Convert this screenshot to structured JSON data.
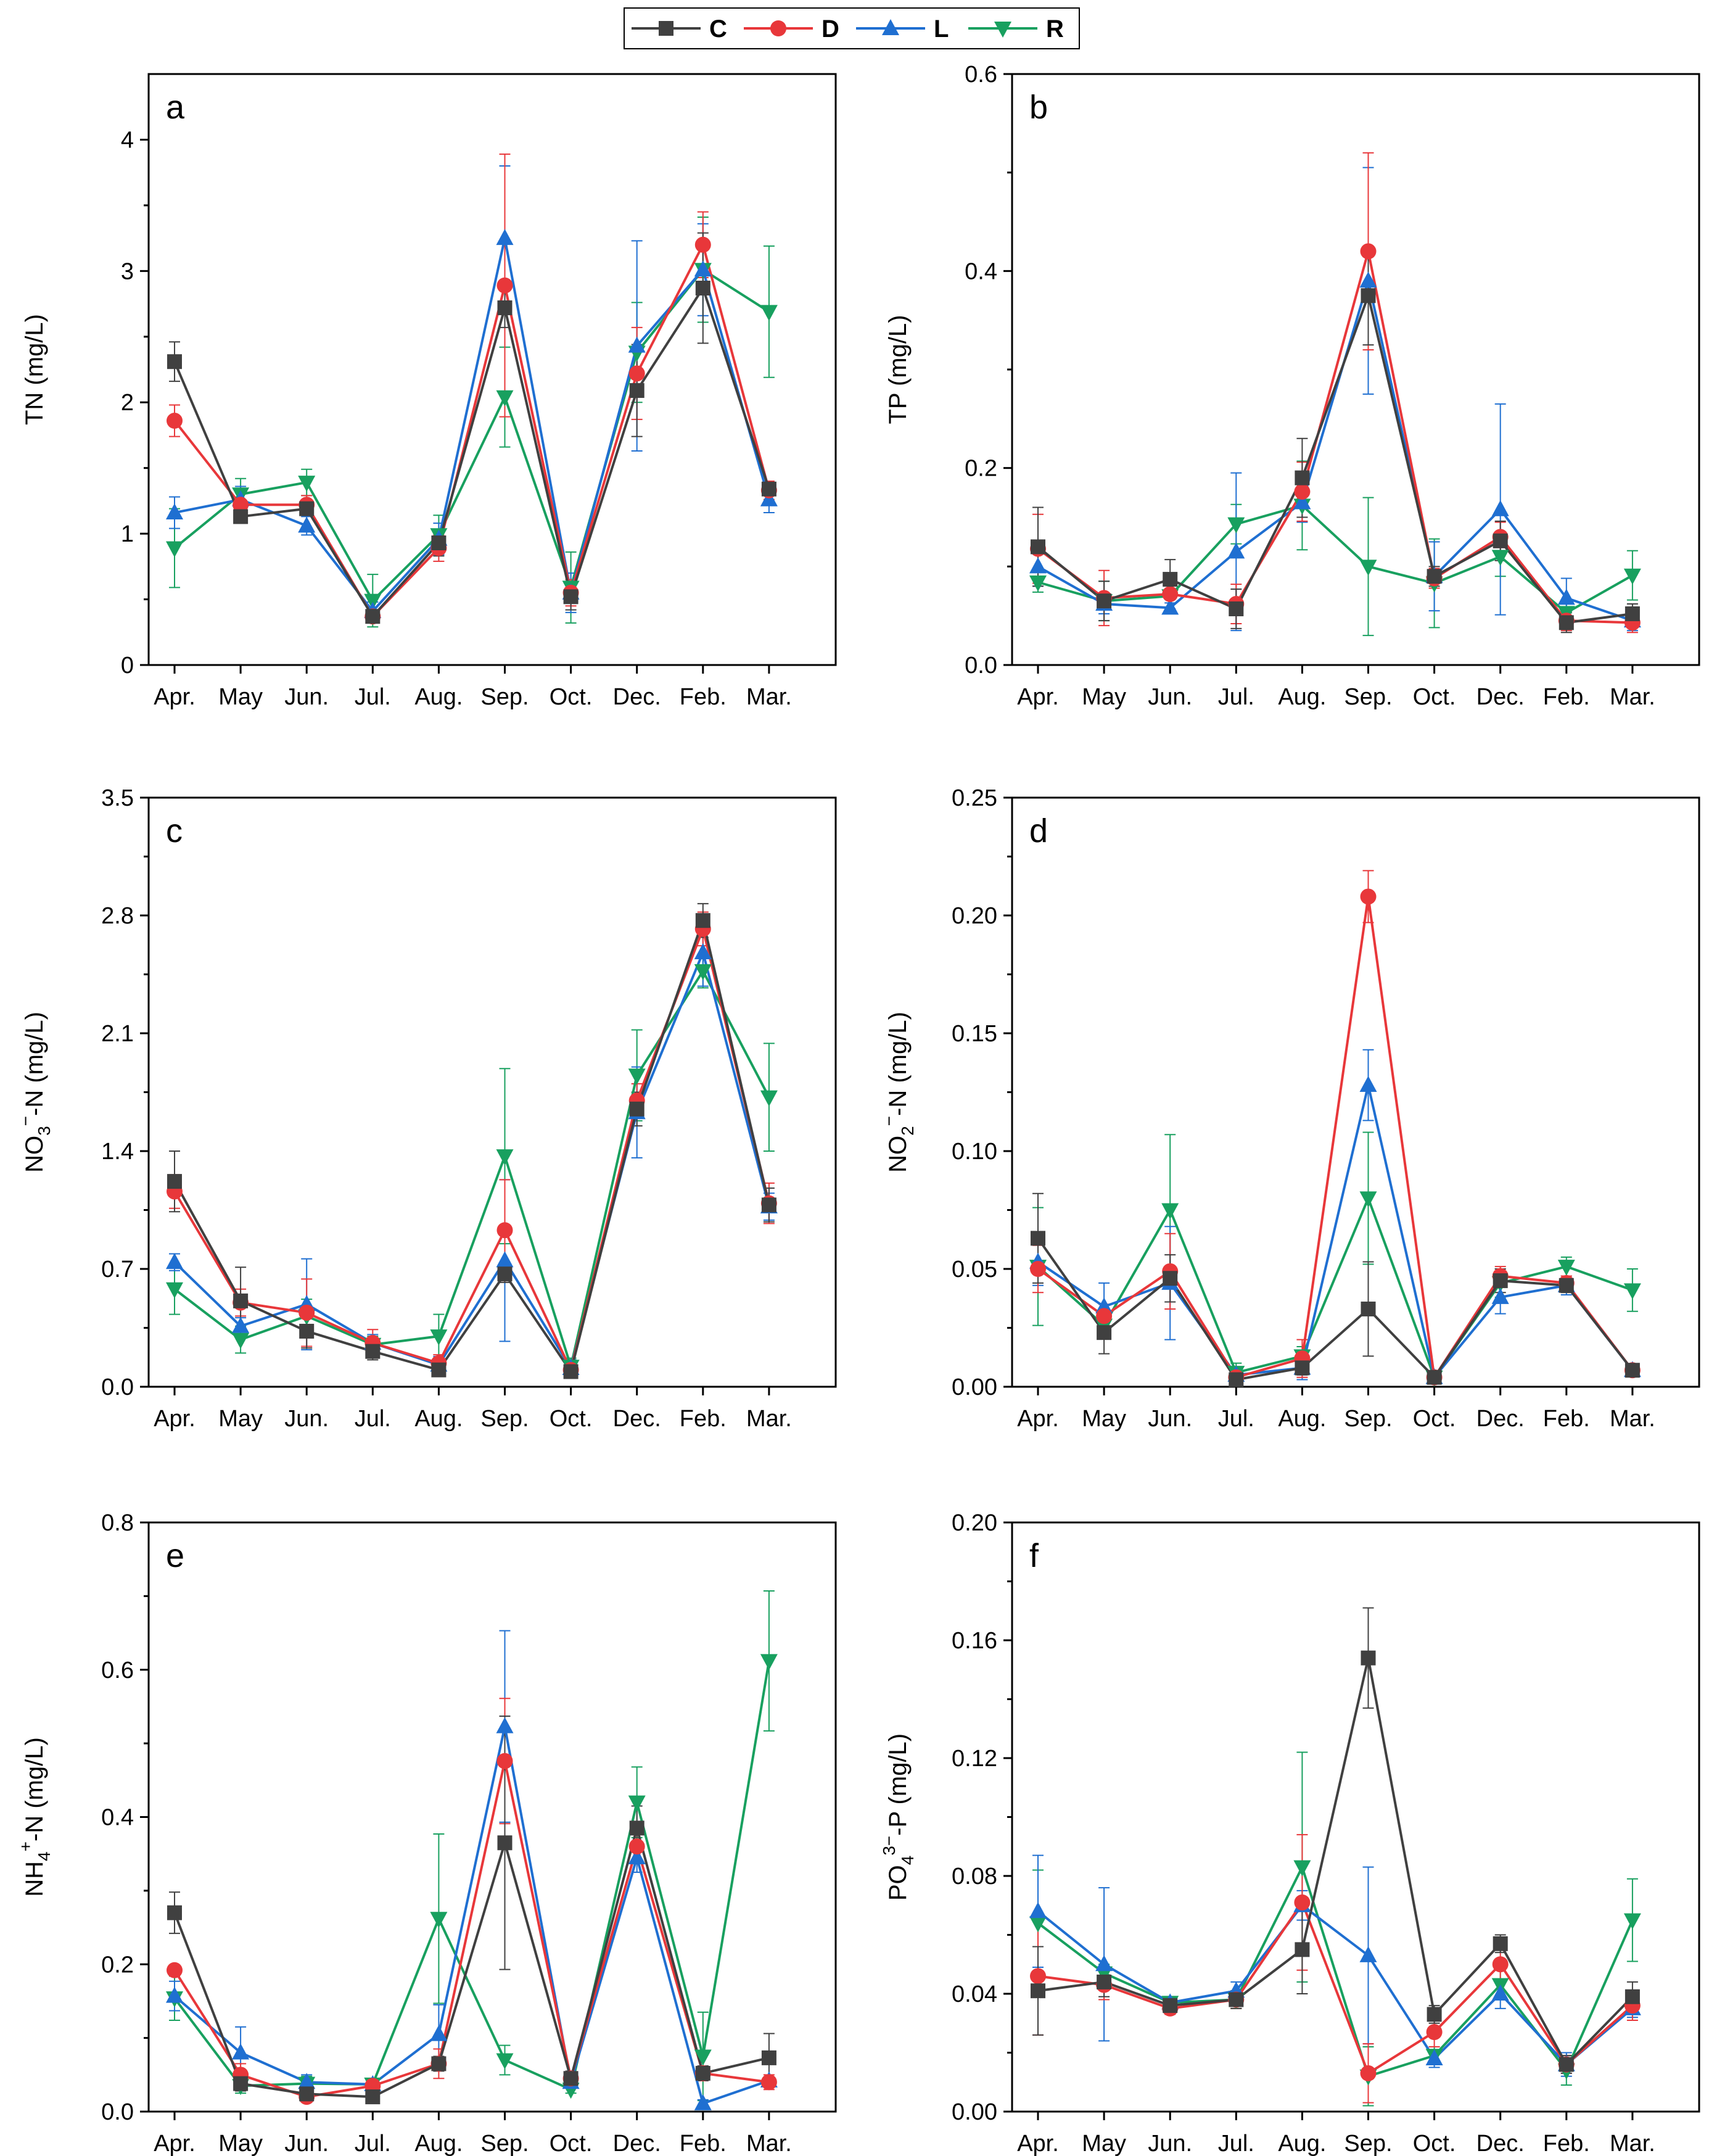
{
  "legend": {
    "items": [
      {
        "name": "C",
        "color": "#404040",
        "marker": "square"
      },
      {
        "name": "D",
        "color": "#e8373a",
        "marker": "circle"
      },
      {
        "name": "L",
        "color": "#1f6fd1",
        "marker": "triangle-up"
      },
      {
        "name": "R",
        "color": "#18a05f",
        "marker": "triangle-down"
      }
    ],
    "placement": "top-center"
  },
  "chart_data": [
    {
      "type": "line",
      "panel": "a",
      "ylabel": "TN (mg/L)",
      "ylim": [
        0,
        4.5
      ],
      "yticks": [
        0,
        1,
        2,
        3,
        4
      ],
      "ytick_labels": [
        "0",
        "1",
        "2",
        "3",
        "4"
      ],
      "categories": [
        "Apr.",
        "May",
        "Jun.",
        "Jul.",
        "Aug.",
        "Sep.",
        "Oct.",
        "Dec.",
        "Feb.",
        "Mar."
      ],
      "series": [
        {
          "name": "C",
          "values": [
            2.31,
            1.13,
            1.19,
            0.37,
            0.93,
            2.72,
            0.52,
            2.09,
            2.87,
            1.34
          ],
          "errors": [
            0.15,
            0.05,
            0.05,
            0.05,
            0.1,
            0.15,
            0.1,
            0.35,
            0.42,
            0.05
          ]
        },
        {
          "name": "D",
          "values": [
            1.86,
            1.22,
            1.22,
            0.37,
            0.89,
            2.89,
            0.55,
            2.22,
            3.2,
            1.33
          ],
          "errors": [
            0.12,
            0.1,
            0.07,
            0.05,
            0.1,
            1.0,
            0.1,
            0.35,
            0.25,
            0.07
          ]
        },
        {
          "name": "L",
          "values": [
            1.16,
            1.26,
            1.06,
            0.41,
            0.96,
            3.25,
            0.55,
            2.43,
            3.01,
            1.26
          ],
          "errors": [
            0.12,
            0.1,
            0.07,
            0.07,
            0.12,
            0.55,
            0.15,
            0.8,
            0.35,
            0.1
          ]
        },
        {
          "name": "R",
          "values": [
            0.89,
            1.3,
            1.39,
            0.49,
            0.99,
            2.04,
            0.59,
            2.38,
            3.01,
            2.69
          ],
          "errors": [
            0.3,
            0.12,
            0.1,
            0.2,
            0.15,
            0.38,
            0.27,
            0.38,
            0.4,
            0.5
          ]
        }
      ]
    },
    {
      "type": "line",
      "panel": "b",
      "ylabel": "TP (mg/L)",
      "ylim": [
        0,
        0.6
      ],
      "yticks": [
        0,
        0.2,
        0.4,
        0.6
      ],
      "ytick_labels": [
        "0.0",
        "0.2",
        "0.4",
        "0.6"
      ],
      "categories": [
        "Apr.",
        "May",
        "Jun.",
        "Jul.",
        "Aug.",
        "Sep.",
        "Oct.",
        "Dec.",
        "Feb.",
        "Mar."
      ],
      "series": [
        {
          "name": "C",
          "values": [
            0.12,
            0.065,
            0.087,
            0.057,
            0.19,
            0.375,
            0.09,
            0.126,
            0.043,
            0.052
          ],
          "errors": [
            0.04,
            0.02,
            0.02,
            0.02,
            0.04,
            0.05,
            0.01,
            0.02,
            0.01,
            0.01
          ]
        },
        {
          "name": "D",
          "values": [
            0.118,
            0.068,
            0.072,
            0.062,
            0.176,
            0.42,
            0.088,
            0.13,
            0.045,
            0.043
          ],
          "errors": [
            0.035,
            0.028,
            0.015,
            0.02,
            0.03,
            0.1,
            0.01,
            0.015,
            0.01,
            0.01
          ]
        },
        {
          "name": "L",
          "values": [
            0.1,
            0.062,
            0.058,
            0.115,
            0.165,
            0.39,
            0.09,
            0.158,
            0.068,
            0.045
          ],
          "errors": [
            0.02,
            0.01,
            0.005,
            0.08,
            0.02,
            0.115,
            0.035,
            0.107,
            0.02,
            0.01
          ]
        },
        {
          "name": "R",
          "values": [
            0.084,
            0.065,
            0.07,
            0.143,
            0.162,
            0.1,
            0.083,
            0.11,
            0.053,
            0.091
          ],
          "errors": [
            0.01,
            0.02,
            0.015,
            0.02,
            0.045,
            0.07,
            0.045,
            0.02,
            0.01,
            0.025
          ]
        }
      ]
    },
    {
      "type": "line",
      "panel": "c",
      "ylabel": "NO3−-N (mg/L)",
      "ylabel_parts": {
        "base": "NO",
        "sub": "3",
        "sup": "−",
        "rest": "-N (mg/L)"
      },
      "ylim": [
        0,
        3.5
      ],
      "yticks": [
        0,
        0.7,
        1.4,
        2.1,
        2.8,
        3.5
      ],
      "ytick_labels": [
        "0.0",
        "0.7",
        "1.4",
        "2.1",
        "2.8",
        "3.5"
      ],
      "categories": [
        "Apr.",
        "May",
        "Jun.",
        "Jul.",
        "Aug.",
        "Sep.",
        "Oct.",
        "Dec.",
        "Feb.",
        "Mar."
      ],
      "series": [
        {
          "name": "C",
          "values": [
            1.22,
            0.51,
            0.33,
            0.21,
            0.1,
            0.67,
            0.09,
            1.65,
            2.77,
            1.08
          ],
          "errors": [
            0.18,
            0.2,
            0.1,
            0.05,
            0.03,
            0.05,
            0.03,
            0.1,
            0.1,
            0.1
          ]
        },
        {
          "name": "D",
          "values": [
            1.16,
            0.5,
            0.44,
            0.26,
            0.14,
            0.93,
            0.1,
            1.7,
            2.72,
            1.09
          ],
          "errors": [
            0.1,
            0.08,
            0.2,
            0.08,
            0.05,
            0.3,
            0.03,
            0.1,
            0.1,
            0.12
          ]
        },
        {
          "name": "L",
          "values": [
            0.74,
            0.36,
            0.49,
            0.26,
            0.13,
            0.75,
            0.11,
            1.63,
            2.58,
            1.07
          ],
          "errors": [
            0.05,
            0.05,
            0.27,
            0.05,
            0.05,
            0.48,
            0.05,
            0.27,
            0.2,
            0.08
          ]
        },
        {
          "name": "R",
          "values": [
            0.58,
            0.28,
            0.42,
            0.25,
            0.3,
            1.37,
            0.12,
            1.85,
            2.47,
            1.72
          ],
          "errors": [
            0.15,
            0.08,
            0.1,
            0.05,
            0.13,
            0.52,
            0.05,
            0.27,
            0.1,
            0.32
          ]
        }
      ]
    },
    {
      "type": "line",
      "panel": "d",
      "ylabel": "NO2−-N (mg/L)",
      "ylabel_parts": {
        "base": "NO",
        "sub": "2",
        "sup": "−",
        "rest": "-N (mg/L)"
      },
      "ylim": [
        0,
        0.25
      ],
      "yticks": [
        0,
        0.05,
        0.1,
        0.15,
        0.2,
        0.25
      ],
      "ytick_labels": [
        "0.00",
        "0.05",
        "0.10",
        "0.15",
        "0.20",
        "0.25"
      ],
      "categories": [
        "Apr.",
        "May",
        "Jun.",
        "Jul.",
        "Aug.",
        "Sep.",
        "Oct.",
        "Dec.",
        "Feb.",
        "Mar."
      ],
      "series": [
        {
          "name": "C",
          "values": [
            0.063,
            0.023,
            0.046,
            0.003,
            0.008,
            0.033,
            0.004,
            0.045,
            0.043,
            0.007
          ],
          "errors": [
            0.019,
            0.009,
            0.01,
            0.002,
            0.003,
            0.02,
            0.002,
            0.005,
            0.003,
            0.002
          ]
        },
        {
          "name": "D",
          "values": [
            0.05,
            0.03,
            0.049,
            0.004,
            0.012,
            0.208,
            0.004,
            0.047,
            0.044,
            0.007
          ],
          "errors": [
            0.01,
            0.005,
            0.016,
            0.002,
            0.008,
            0.011,
            0.002,
            0.004,
            0.003,
            0.002
          ]
        },
        {
          "name": "L",
          "values": [
            0.053,
            0.034,
            0.044,
            0.005,
            0.008,
            0.128,
            0.004,
            0.038,
            0.043,
            0.007
          ],
          "errors": [
            0.01,
            0.01,
            0.024,
            0.003,
            0.005,
            0.015,
            0.002,
            0.007,
            0.004,
            0.002
          ]
        },
        {
          "name": "R",
          "values": [
            0.051,
            0.026,
            0.075,
            0.006,
            0.013,
            0.08,
            0.004,
            0.044,
            0.051,
            0.041
          ],
          "errors": [
            0.025,
            0.005,
            0.032,
            0.004,
            0.004,
            0.028,
            0.002,
            0.006,
            0.004,
            0.009
          ]
        }
      ]
    },
    {
      "type": "line",
      "panel": "e",
      "ylabel": "NH4+-N (mg/L)",
      "ylabel_parts": {
        "base": "NH",
        "sub": "4",
        "sup": "+",
        "rest": "-N (mg/L)"
      },
      "ylim": [
        0,
        0.8
      ],
      "yticks": [
        0,
        0.2,
        0.4,
        0.6,
        0.8
      ],
      "ytick_labels": [
        "0.0",
        "0.2",
        "0.4",
        "0.6",
        "0.8"
      ],
      "categories": [
        "Apr.",
        "May",
        "Jun.",
        "Jul.",
        "Aug.",
        "Sep.",
        "Oct.",
        "Dec.",
        "Feb.",
        "Mar."
      ],
      "series": [
        {
          "name": "C",
          "values": [
            0.27,
            0.038,
            0.024,
            0.02,
            0.065,
            0.365,
            0.045,
            0.385,
            0.052,
            0.073
          ],
          "errors": [
            0.028,
            0.01,
            0.005,
            0.005,
            0.01,
            0.172,
            0.01,
            0.03,
            0.01,
            0.033
          ]
        },
        {
          "name": "D",
          "values": [
            0.192,
            0.05,
            0.02,
            0.035,
            0.065,
            0.476,
            0.045,
            0.36,
            0.052,
            0.04
          ],
          "errors": [
            0.005,
            0.015,
            0.005,
            0.005,
            0.02,
            0.085,
            0.005,
            0.02,
            0.01,
            0.01
          ]
        },
        {
          "name": "L",
          "values": [
            0.157,
            0.08,
            0.04,
            0.037,
            0.105,
            0.523,
            0.04,
            0.345,
            0.011,
            0.042
          ],
          "errors": [
            0.02,
            0.035,
            0.01,
            0.005,
            0.04,
            0.13,
            0.005,
            0.02,
            0.005,
            0.005
          ]
        },
        {
          "name": "R",
          "values": [
            0.154,
            0.035,
            0.038,
            0.037,
            0.262,
            0.07,
            0.03,
            0.42,
            0.075,
            0.612
          ],
          "errors": [
            0.03,
            0.01,
            0.01,
            0.005,
            0.115,
            0.02,
            0.005,
            0.048,
            0.06,
            0.095
          ]
        }
      ]
    },
    {
      "type": "line",
      "panel": "f",
      "ylabel": "PO43−-P (mg/L)",
      "ylabel_parts": {
        "base": "PO",
        "sub": "4",
        "sup": "3−",
        "rest": "-P (mg/L)"
      },
      "ylim": [
        0,
        0.2
      ],
      "yticks": [
        0,
        0.04,
        0.08,
        0.12,
        0.16,
        0.2
      ],
      "ytick_labels": [
        "0.00",
        "0.04",
        "0.08",
        "0.12",
        "0.16",
        "0.20"
      ],
      "categories": [
        "Apr.",
        "May",
        "Jun.",
        "Jul.",
        "Aug.",
        "Sep.",
        "Oct.",
        "Dec.",
        "Feb.",
        "Mar."
      ],
      "series": [
        {
          "name": "C",
          "values": [
            0.041,
            0.044,
            0.036,
            0.038,
            0.055,
            0.154,
            0.033,
            0.057,
            0.016,
            0.039
          ],
          "errors": [
            0.015,
            0.005,
            0.002,
            0.003,
            0.015,
            0.017,
            0.003,
            0.003,
            0.003,
            0.005
          ]
        },
        {
          "name": "D",
          "values": [
            0.046,
            0.043,
            0.035,
            0.038,
            0.071,
            0.013,
            0.027,
            0.05,
            0.016,
            0.036
          ],
          "errors": [
            0.02,
            0.005,
            0.002,
            0.003,
            0.023,
            0.01,
            0.005,
            0.005,
            0.003,
            0.005
          ]
        },
        {
          "name": "L",
          "values": [
            0.068,
            0.05,
            0.037,
            0.041,
            0.07,
            0.053,
            0.018,
            0.04,
            0.016,
            0.035
          ],
          "errors": [
            0.019,
            0.026,
            0.002,
            0.003,
            0.005,
            0.03,
            0.003,
            0.005,
            0.004,
            0.003
          ]
        },
        {
          "name": "R",
          "values": [
            0.064,
            0.047,
            0.037,
            0.038,
            0.083,
            0.012,
            0.019,
            0.043,
            0.014,
            0.065
          ],
          "errors": [
            0.018,
            0.003,
            0.002,
            0.003,
            0.039,
            0.01,
            0.003,
            0.005,
            0.005,
            0.014
          ]
        }
      ]
    }
  ]
}
